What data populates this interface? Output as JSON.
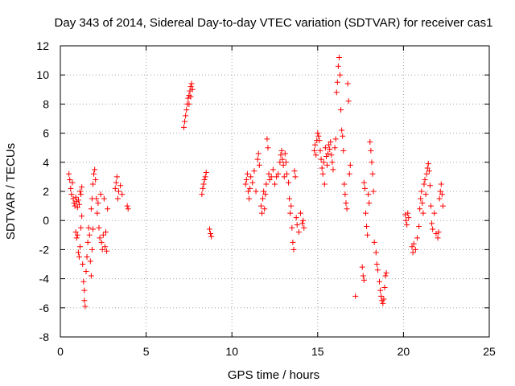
{
  "chart_data": {
    "type": "scatter",
    "title": "Day 343 of 2014, Sidereal Day-to-day VTEC variation (SDTVAR) for receiver cas1",
    "xlabel": "GPS time / hours",
    "ylabel": "SDTVAR / TECUs",
    "xlim": [
      0,
      25
    ],
    "ylim": [
      -8,
      12
    ],
    "x_ticks": [
      0,
      5,
      10,
      15,
      20,
      25
    ],
    "y_ticks": [
      -8,
      -6,
      -4,
      -2,
      0,
      2,
      4,
      6,
      8,
      10,
      12
    ],
    "grid": true,
    "marker": "+",
    "color": "#ff0000",
    "series": [
      {
        "name": "SDTVAR",
        "points": [
          [
            0.5,
            3.2
          ],
          [
            0.55,
            2.8
          ],
          [
            0.6,
            2.2
          ],
          [
            0.65,
            1.8
          ],
          [
            0.7,
            2.6
          ],
          [
            0.75,
            1.5
          ],
          [
            0.8,
            1.2
          ],
          [
            0.85,
            1.0
          ],
          [
            0.9,
            1.6
          ],
          [
            0.95,
            1.3
          ],
          [
            1.0,
            0.9
          ],
          [
            1.05,
            1.4
          ],
          [
            1.1,
            1.1
          ],
          [
            1.15,
            2.0
          ],
          [
            1.2,
            1.8
          ],
          [
            1.25,
            2.3
          ],
          [
            0.9,
            -0.8
          ],
          [
            0.95,
            -1.2
          ],
          [
            1.0,
            -1.0
          ],
          [
            1.05,
            -2.2
          ],
          [
            1.1,
            -2.5
          ],
          [
            1.15,
            -1.8
          ],
          [
            1.2,
            -0.5
          ],
          [
            1.25,
            0.3
          ],
          [
            1.3,
            -3.0
          ],
          [
            1.35,
            -4.2
          ],
          [
            1.4,
            -5.5
          ],
          [
            1.45,
            -5.9
          ],
          [
            1.4,
            -4.8
          ],
          [
            1.5,
            -3.5
          ],
          [
            1.55,
            -2.5
          ],
          [
            1.6,
            -1.5
          ],
          [
            1.65,
            -0.5
          ],
          [
            1.7,
            -1.0
          ],
          [
            1.75,
            -2.8
          ],
          [
            1.8,
            -3.8
          ],
          [
            1.85,
            -2.0
          ],
          [
            1.9,
            -0.6
          ],
          [
            1.8,
            0.8
          ],
          [
            1.85,
            1.5
          ],
          [
            1.9,
            2.5
          ],
          [
            1.95,
            3.2
          ],
          [
            2.0,
            3.5
          ],
          [
            2.05,
            2.8
          ],
          [
            2.1,
            1.5
          ],
          [
            2.15,
            0.5
          ],
          [
            2.2,
            1.2
          ],
          [
            2.25,
            -0.5
          ],
          [
            2.3,
            -1.2
          ],
          [
            2.35,
            1.8
          ],
          [
            2.4,
            -1.5
          ],
          [
            2.45,
            -2.0
          ],
          [
            2.5,
            -1.0
          ],
          [
            2.55,
            1.5
          ],
          [
            2.6,
            -1.8
          ],
          [
            2.65,
            -0.8
          ],
          [
            2.7,
            -2.1
          ],
          [
            2.75,
            0.8
          ],
          [
            3.2,
            2.2
          ],
          [
            3.25,
            2.6
          ],
          [
            3.3,
            3.0
          ],
          [
            3.35,
            1.5
          ],
          [
            3.4,
            2.0
          ],
          [
            3.5,
            2.4
          ],
          [
            3.6,
            1.8
          ],
          [
            3.9,
            1.0
          ],
          [
            3.95,
            0.8
          ],
          [
            7.2,
            6.4
          ],
          [
            7.25,
            6.8
          ],
          [
            7.3,
            7.2
          ],
          [
            7.35,
            7.6
          ],
          [
            7.4,
            8.0
          ],
          [
            7.45,
            8.4
          ],
          [
            7.5,
            8.6
          ],
          [
            7.55,
            8.9
          ],
          [
            7.6,
            9.2
          ],
          [
            7.65,
            9.4
          ],
          [
            7.7,
            9.0
          ],
          [
            7.6,
            8.5
          ],
          [
            7.5,
            8.0
          ],
          [
            8.25,
            1.8
          ],
          [
            8.3,
            2.2
          ],
          [
            8.35,
            2.5
          ],
          [
            8.4,
            2.8
          ],
          [
            8.45,
            3.0
          ],
          [
            8.5,
            3.3
          ],
          [
            8.7,
            -0.6
          ],
          [
            8.75,
            -0.9
          ],
          [
            8.8,
            -1.1
          ],
          [
            10.8,
            2.5
          ],
          [
            10.85,
            2.8
          ],
          [
            10.9,
            3.2
          ],
          [
            10.95,
            2.0
          ],
          [
            11.0,
            1.5
          ],
          [
            11.05,
            2.2
          ],
          [
            11.1,
            3.0
          ],
          [
            11.2,
            2.6
          ],
          [
            11.3,
            3.4
          ],
          [
            11.4,
            2.0
          ],
          [
            11.5,
            4.2
          ],
          [
            11.55,
            4.6
          ],
          [
            11.6,
            3.8
          ],
          [
            11.7,
            1.0
          ],
          [
            11.75,
            0.5
          ],
          [
            11.8,
            1.5
          ],
          [
            11.85,
            2.0
          ],
          [
            11.9,
            0.8
          ],
          [
            11.95,
            1.8
          ],
          [
            12.0,
            2.5
          ],
          [
            12.05,
            5.6
          ],
          [
            12.1,
            5.0
          ],
          [
            12.15,
            3.2
          ],
          [
            12.2,
            2.8
          ],
          [
            12.3,
            3.0
          ],
          [
            12.4,
            3.5
          ],
          [
            12.5,
            2.5
          ],
          [
            12.6,
            3.0
          ],
          [
            12.7,
            3.2
          ],
          [
            12.8,
            4.0
          ],
          [
            12.85,
            4.5
          ],
          [
            12.9,
            4.8
          ],
          [
            12.95,
            4.2
          ],
          [
            13.0,
            3.8
          ],
          [
            13.05,
            3.0
          ],
          [
            13.1,
            4.6
          ],
          [
            13.15,
            4.0
          ],
          [
            13.2,
            3.2
          ],
          [
            13.3,
            2.6
          ],
          [
            13.35,
            1.5
          ],
          [
            13.4,
            0.5
          ],
          [
            13.45,
            1.0
          ],
          [
            13.5,
            -0.5
          ],
          [
            13.55,
            -1.5
          ],
          [
            13.6,
            -2.0
          ],
          [
            13.65,
            3.4
          ],
          [
            13.7,
            3.0
          ],
          [
            13.75,
            0.2
          ],
          [
            13.8,
            -0.3
          ],
          [
            13.9,
            -0.8
          ],
          [
            14.0,
            0.5
          ],
          [
            14.1,
            -0.2
          ],
          [
            14.15,
            0.0
          ],
          [
            14.2,
            -0.5
          ],
          [
            14.8,
            4.8
          ],
          [
            14.85,
            5.2
          ],
          [
            14.9,
            4.5
          ],
          [
            14.95,
            5.5
          ],
          [
            15.0,
            6.0
          ],
          [
            15.05,
            5.8
          ],
          [
            15.1,
            5.5
          ],
          [
            15.15,
            4.8
          ],
          [
            15.2,
            4.2
          ],
          [
            15.25,
            3.6
          ],
          [
            15.3,
            3.2
          ],
          [
            15.35,
            4.0
          ],
          [
            15.4,
            2.5
          ],
          [
            15.45,
            5.0
          ],
          [
            15.5,
            4.4
          ],
          [
            15.55,
            3.8
          ],
          [
            15.6,
            4.6
          ],
          [
            15.65,
            5.2
          ],
          [
            15.7,
            4.9
          ],
          [
            15.75,
            5.4
          ],
          [
            15.8,
            4.5
          ],
          [
            15.85,
            4.0
          ],
          [
            15.9,
            3.5
          ],
          [
            16.0,
            5.0
          ],
          [
            16.05,
            5.6
          ],
          [
            16.1,
            8.8
          ],
          [
            16.15,
            9.5
          ],
          [
            16.2,
            10.6
          ],
          [
            16.25,
            11.2
          ],
          [
            16.3,
            10.0
          ],
          [
            16.35,
            7.6
          ],
          [
            16.4,
            6.2
          ],
          [
            16.45,
            5.8
          ],
          [
            16.5,
            4.8
          ],
          [
            16.55,
            2.5
          ],
          [
            16.6,
            1.8
          ],
          [
            16.65,
            1.2
          ],
          [
            16.7,
            0.8
          ],
          [
            16.75,
            9.4
          ],
          [
            16.8,
            8.2
          ],
          [
            16.85,
            3.2
          ],
          [
            16.9,
            3.8
          ],
          [
            17.2,
            -5.2
          ],
          [
            17.7,
            2.6
          ],
          [
            17.75,
            2.2
          ],
          [
            17.8,
            0.5
          ],
          [
            17.85,
            -0.4
          ],
          [
            17.9,
            -1.0
          ],
          [
            17.6,
            -3.2
          ],
          [
            17.65,
            -3.8
          ],
          [
            17.7,
            -4.1
          ],
          [
            17.95,
            1.8
          ],
          [
            18.0,
            1.2
          ],
          [
            18.05,
            5.4
          ],
          [
            18.1,
            4.8
          ],
          [
            18.15,
            4.0
          ],
          [
            18.2,
            3.2
          ],
          [
            18.25,
            2.0
          ],
          [
            18.3,
            -1.5
          ],
          [
            18.4,
            -2.2
          ],
          [
            18.45,
            -3.0
          ],
          [
            18.5,
            -3.4
          ],
          [
            18.6,
            -4.2
          ],
          [
            18.65,
            -4.8
          ],
          [
            18.7,
            -5.2
          ],
          [
            18.75,
            -5.5
          ],
          [
            18.8,
            -5.7
          ],
          [
            18.85,
            -5.4
          ],
          [
            18.9,
            -4.6
          ],
          [
            18.95,
            -3.8
          ],
          [
            19.0,
            -3.6
          ],
          [
            20.1,
            0.4
          ],
          [
            20.15,
            0.0
          ],
          [
            20.2,
            -0.3
          ],
          [
            20.25,
            0.5
          ],
          [
            20.3,
            0.2
          ],
          [
            20.5,
            -1.8
          ],
          [
            20.55,
            -2.2
          ],
          [
            20.6,
            -1.6
          ],
          [
            20.7,
            -2.0
          ],
          [
            20.8,
            -1.2
          ],
          [
            20.9,
            -0.4
          ],
          [
            20.95,
            0.8
          ],
          [
            21.0,
            1.5
          ],
          [
            21.05,
            2.0
          ],
          [
            21.1,
            1.2
          ],
          [
            21.15,
            0.5
          ],
          [
            21.2,
            2.5
          ],
          [
            21.25,
            2.8
          ],
          [
            21.3,
            1.8
          ],
          [
            21.35,
            3.2
          ],
          [
            21.4,
            3.6
          ],
          [
            21.45,
            3.9
          ],
          [
            21.5,
            3.4
          ],
          [
            21.55,
            2.4
          ],
          [
            21.6,
            1.0
          ],
          [
            21.65,
            -0.2
          ],
          [
            21.7,
            -0.6
          ],
          [
            21.8,
            0.5
          ],
          [
            21.9,
            -0.9
          ],
          [
            22.0,
            -1.2
          ],
          [
            22.05,
            -0.8
          ],
          [
            22.1,
            1.5
          ],
          [
            22.15,
            2.0
          ],
          [
            22.2,
            2.5
          ],
          [
            22.25,
            1.8
          ],
          [
            22.3,
            1.0
          ]
        ]
      }
    ]
  }
}
